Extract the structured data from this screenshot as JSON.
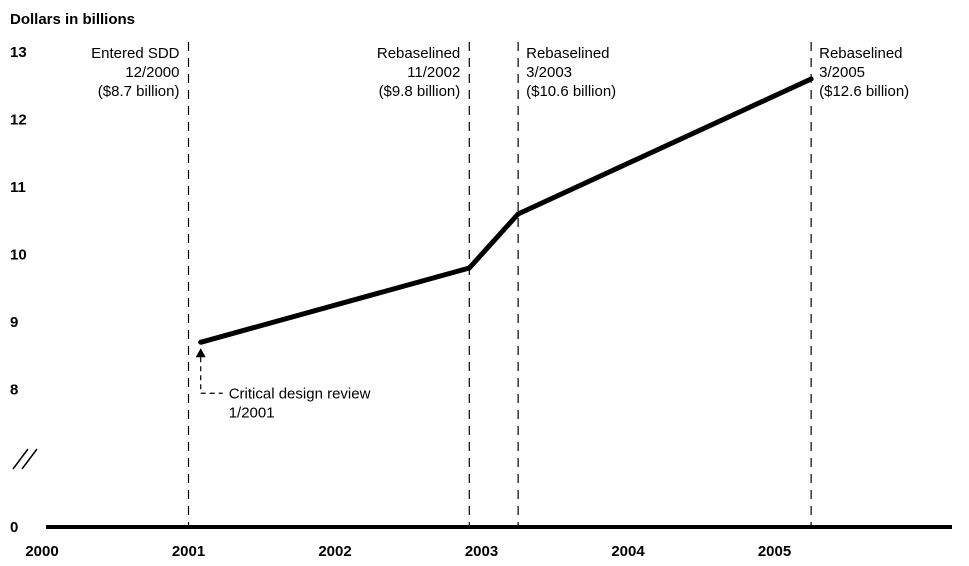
{
  "chart_data": {
    "type": "line",
    "ylabel": "Dollars in billions",
    "y_ticks": [
      "13",
      "12",
      "11",
      "10",
      "9",
      "8",
      "0"
    ],
    "x_ticks": [
      "2000",
      "2001",
      "2002",
      "2003",
      "2004",
      "2005"
    ],
    "ylim": [
      8,
      13
    ],
    "axis_break": true,
    "series": [
      {
        "points": [
          {
            "x": "2001-01",
            "y": 8.7
          },
          {
            "x": "2002-11",
            "y": 9.8
          },
          {
            "x": "2003-03",
            "y": 10.6
          },
          {
            "x": "2005-03",
            "y": 12.6
          }
        ]
      }
    ],
    "markers": [
      {
        "x": "2000-12",
        "lines": [
          "Entered SDD",
          "12/2000",
          "($8.7 billion)"
        ],
        "align": "left"
      },
      {
        "x": "2002-11",
        "lines": [
          "Rebaselined",
          "11/2002",
          "($9.8 billion)"
        ],
        "align": "left"
      },
      {
        "x": "2003-03",
        "lines": [
          "Rebaselined",
          "3/2003",
          "($10.6 billion)"
        ],
        "align": "right"
      },
      {
        "x": "2005-03",
        "lines": [
          "Rebaselined",
          "3/2005",
          "($12.6 billion)"
        ],
        "align": "right"
      }
    ],
    "annotation": {
      "x": "2001-01",
      "y": 8.7,
      "lines": [
        "Critical design review",
        "1/2001"
      ]
    },
    "grid": false
  }
}
